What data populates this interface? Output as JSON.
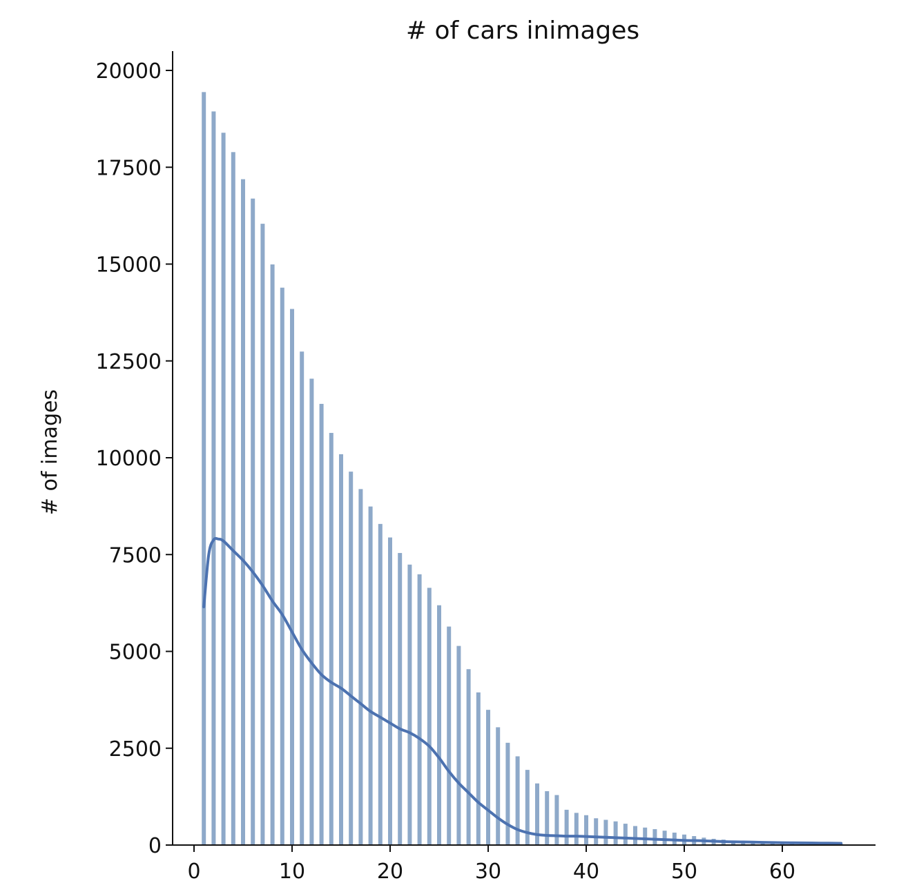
{
  "chart_data": {
    "type": "bar",
    "title": "# of cars inimages",
    "xlabel": "",
    "ylabel": "# of images",
    "xlim": [
      -2.5,
      70
    ],
    "ylim": [
      0,
      21000
    ],
    "xticks": [
      0,
      10,
      20,
      30,
      40,
      50,
      60
    ],
    "yticks": [
      0,
      2500,
      5000,
      7500,
      10000,
      12500,
      15000,
      17500,
      20000
    ],
    "grid": false,
    "legend": "none",
    "colors": {
      "bar": "#8ea9c9",
      "kde": "#4c72b0",
      "axis": "#111111"
    },
    "x": [
      1,
      2,
      3,
      4,
      5,
      6,
      7,
      8,
      9,
      10,
      11,
      12,
      13,
      14,
      15,
      16,
      17,
      18,
      19,
      20,
      21,
      22,
      23,
      24,
      25,
      26,
      27,
      28,
      29,
      30,
      31,
      32,
      33,
      34,
      35,
      36,
      37,
      38,
      39,
      40,
      41,
      42,
      43,
      44,
      45,
      46,
      47,
      48,
      49,
      50,
      51,
      52,
      53,
      54,
      55,
      56,
      57,
      58,
      59,
      60,
      61,
      62,
      63,
      64,
      65,
      66
    ],
    "values": [
      19450,
      18950,
      18400,
      17900,
      17200,
      16700,
      16050,
      15000,
      14400,
      13850,
      12750,
      12050,
      11400,
      10650,
      10100,
      9650,
      9200,
      8750,
      8300,
      7950,
      7550,
      7250,
      7000,
      6650,
      6200,
      5650,
      5150,
      4550,
      3950,
      3500,
      3050,
      2650,
      2300,
      1950,
      1600,
      1400,
      1300,
      920,
      840,
      780,
      700,
      660,
      620,
      560,
      500,
      460,
      420,
      380,
      330,
      280,
      240,
      200,
      170,
      150,
      125,
      110,
      95,
      85,
      75,
      65,
      60,
      55,
      50,
      45,
      40,
      35
    ],
    "kde": {
      "x": [
        1,
        1.5,
        2,
        2.5,
        3,
        4,
        5,
        6,
        7,
        8,
        9,
        10,
        11,
        12,
        13,
        14,
        15,
        16,
        17,
        18,
        19,
        20,
        21,
        22,
        23,
        24,
        25,
        26,
        27,
        28,
        29,
        30,
        31,
        32,
        33,
        34,
        35,
        36,
        37,
        38,
        39,
        40,
        42,
        44,
        46,
        48,
        50,
        52,
        54,
        56,
        58,
        60,
        62,
        64,
        66
      ],
      "y": [
        6150,
        7500,
        7880,
        7900,
        7850,
        7600,
        7350,
        7050,
        6700,
        6300,
        5950,
        5500,
        5050,
        4700,
        4400,
        4200,
        4050,
        3850,
        3650,
        3450,
        3300,
        3150,
        3000,
        2900,
        2750,
        2550,
        2250,
        1900,
        1600,
        1350,
        1100,
        900,
        700,
        530,
        400,
        320,
        270,
        250,
        240,
        230,
        230,
        220,
        200,
        180,
        160,
        140,
        120,
        110,
        90,
        80,
        70,
        60,
        55,
        50,
        45
      ]
    }
  }
}
